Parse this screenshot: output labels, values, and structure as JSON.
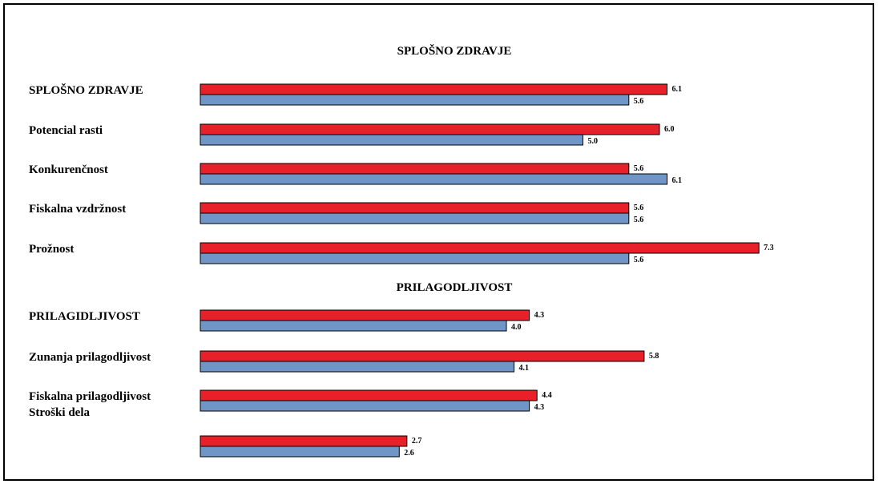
{
  "chart_data": {
    "type": "bar",
    "orientation": "horizontal",
    "grid": false,
    "legend": "none",
    "colors": {
      "series_a": "#e8202a",
      "series_b": "#7096c8",
      "outline": "#000000"
    },
    "sections": [
      {
        "title": "SPLOŠNO ZDRAVJE",
        "categories": [
          "SPLOŠNO ZDRAVJE",
          "Potencial rasti",
          "Konkurenčnost",
          "Fiskalna vzdržnost",
          "Prožnost"
        ],
        "series": [
          {
            "values": [
              6.1,
              6.0,
              5.6,
              5.6,
              7.3
            ]
          },
          {
            "values": [
              5.6,
              5.0,
              6.1,
              5.6,
              5.6
            ]
          }
        ],
        "value_labels": [
          [
            "6.1",
            "6.0",
            "5.6",
            "5.6",
            "7.3"
          ],
          [
            "5.6",
            "5.0",
            "6.1",
            "5.6",
            "5.6"
          ]
        ]
      },
      {
        "title": "PRILAGODLJIVOST",
        "categories": [
          "PRILAGIDLJIVOST",
          "Zunanja prilagodljivost",
          "Fiskalna prilagodljivost",
          "Stroški dela"
        ],
        "series": [
          {
            "values": [
              4.3,
              5.8,
              4.4,
              2.7
            ]
          },
          {
            "values": [
              4.0,
              4.1,
              4.3,
              2.6
            ]
          }
        ],
        "value_labels": [
          [
            "4.3",
            "5.8",
            "4.4",
            "2.7"
          ],
          [
            "4.0",
            "4.1",
            "4.3",
            "2.6"
          ]
        ]
      }
    ]
  }
}
